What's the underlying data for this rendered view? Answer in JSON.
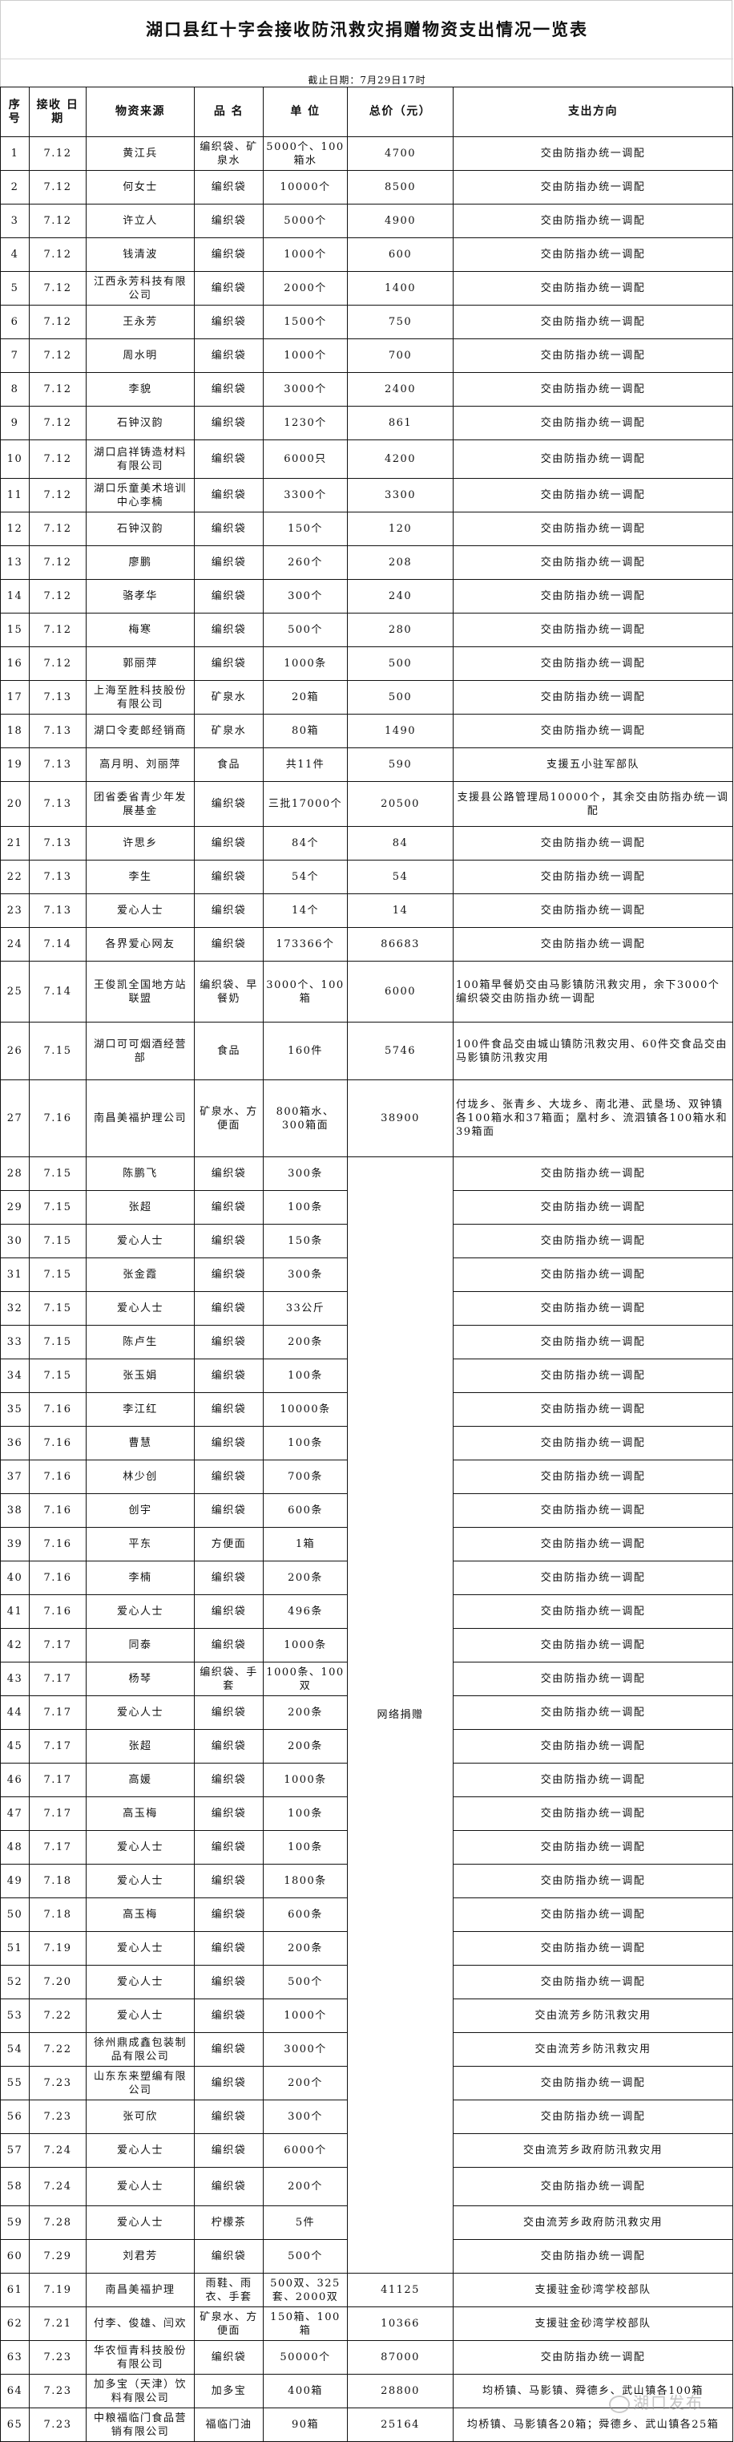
{
  "title": "湖口县红十字会接收防汛救灾捐赠物资支出情况一览表",
  "subtitle": "截止日期：7月29日17时",
  "columns": [
    "序号",
    "接收 日期",
    "物资来源",
    "品 名",
    "单 位",
    "总价（元）",
    "支出方向"
  ],
  "merged_total": "网络捐赠",
  "rows": [
    [
      "1",
      "7.12",
      "黄江兵",
      "编织袋、矿泉水",
      "5000个、100箱水",
      "4700",
      "交由防指办统一调配"
    ],
    [
      "2",
      "7.12",
      "何女士",
      "编织袋",
      "10000个",
      "8500",
      "交由防指办统一调配"
    ],
    [
      "3",
      "7.12",
      "许立人",
      "编织袋",
      "5000个",
      "4900",
      "交由防指办统一调配"
    ],
    [
      "4",
      "7.12",
      "钱清波",
      "编织袋",
      "1000个",
      "600",
      "交由防指办统一调配"
    ],
    [
      "5",
      "7.12",
      "江西永芳科技有限公司",
      "编织袋",
      "2000个",
      "1400",
      "交由防指办统一调配"
    ],
    [
      "6",
      "7.12",
      "王永芳",
      "编织袋",
      "1500个",
      "750",
      "交由防指办统一调配"
    ],
    [
      "7",
      "7.12",
      "周水明",
      "编织袋",
      "1000个",
      "700",
      "交由防指办统一调配"
    ],
    [
      "8",
      "7.12",
      "李貌",
      "编织袋",
      "3000个",
      "2400",
      "交由防指办统一调配"
    ],
    [
      "9",
      "7.12",
      "石钟汉韵",
      "编织袋",
      "1230个",
      "861",
      "交由防指办统一调配"
    ],
    [
      "10",
      "7.12",
      "湖口启祥铸造材料有限公司",
      "编织袋",
      "6000只",
      "4200",
      "交由防指办统一调配"
    ],
    [
      "11",
      "7.12",
      "湖口乐童美术培训中心李楠",
      "编织袋",
      "3300个",
      "3300",
      "交由防指办统一调配"
    ],
    [
      "12",
      "7.12",
      "石钟汉韵",
      "编织袋",
      "150个",
      "120",
      "交由防指办统一调配"
    ],
    [
      "13",
      "7.12",
      "廖鹏",
      "编织袋",
      "260个",
      "208",
      "交由防指办统一调配"
    ],
    [
      "14",
      "7.12",
      "骆孝华",
      "编织袋",
      "300个",
      "240",
      "交由防指办统一调配"
    ],
    [
      "15",
      "7.12",
      "梅寒",
      "编织袋",
      "500个",
      "280",
      "交由防指办统一调配"
    ],
    [
      "16",
      "7.12",
      "郭丽萍",
      "编织袋",
      "1000条",
      "500",
      "交由防指办统一调配"
    ],
    [
      "17",
      "7.13",
      "上海至胜科技股份有限公司",
      "矿泉水",
      "20箱",
      "500",
      "交由防指办统一调配"
    ],
    [
      "18",
      "7.13",
      "湖口令麦郎经销商",
      "矿泉水",
      "80箱",
      "1490",
      "交由防指办统一调配"
    ],
    [
      "19",
      "7.13",
      "高月明、刘丽萍",
      "食品",
      "共11件",
      "590",
      "支援五小驻军部队"
    ],
    [
      "20",
      "7.13",
      "团省委省青少年发展基金",
      "编织袋",
      "三批17000个",
      "20500",
      "支援县公路管理局10000个，其余交由防指办统一调配"
    ],
    [
      "21",
      "7.13",
      "许思乡",
      "编织袋",
      "84个",
      "84",
      "交由防指办统一调配"
    ],
    [
      "22",
      "7.13",
      "李生",
      "编织袋",
      "54个",
      "54",
      "交由防指办统一调配"
    ],
    [
      "23",
      "7.13",
      "爱心人士",
      "编织袋",
      "14个",
      "14",
      "交由防指办统一调配"
    ],
    [
      "24",
      "7.14",
      "各界爱心网友",
      "编织袋",
      "173366个",
      "86683",
      "交由防指办统一调配"
    ],
    [
      "25",
      "7.14",
      "王俊凯全国地方站联盟",
      "编织袋、早餐奶",
      "3000个、100箱",
      "6000",
      "100箱早餐奶交由马影镇防汛救灾用，余下3000个编织袋交由防指办统一调配"
    ],
    [
      "26",
      "7.15",
      "湖口可可烟酒经营部",
      "食品",
      "160件",
      "5746",
      "100件食品交由城山镇防汛救灾用、60件交食品交由马影镇防汛救灾用"
    ],
    [
      "27",
      "7.16",
      "南昌美福护理公司",
      "矿泉水、方便面",
      "800箱水、300箱面",
      "38900",
      "付垅乡、张青乡、大垅乡、南北港、武垦场、双钟镇各100箱水和37箱面；凰村乡、流泗镇各100箱水和39箱面"
    ],
    [
      "28",
      "7.15",
      "陈鹏飞",
      "编织袋",
      "300条",
      "",
      "交由防指办统一调配"
    ],
    [
      "29",
      "7.15",
      "张超",
      "编织袋",
      "100条",
      "",
      "交由防指办统一调配"
    ],
    [
      "30",
      "7.15",
      "爱心人士",
      "编织袋",
      "150条",
      "",
      "交由防指办统一调配"
    ],
    [
      "31",
      "7.15",
      "张金霞",
      "编织袋",
      "300条",
      "",
      "交由防指办统一调配"
    ],
    [
      "32",
      "7.15",
      "爱心人士",
      "编织袋",
      "33公斤",
      "",
      "交由防指办统一调配"
    ],
    [
      "33",
      "7.15",
      "陈卢生",
      "编织袋",
      "200条",
      "",
      "交由防指办统一调配"
    ],
    [
      "34",
      "7.15",
      "张玉娟",
      "编织袋",
      "100条",
      "",
      "交由防指办统一调配"
    ],
    [
      "35",
      "7.16",
      "李江红",
      "编织袋",
      "10000条",
      "",
      "交由防指办统一调配"
    ],
    [
      "36",
      "7.16",
      "曹慧",
      "编织袋",
      "100条",
      "",
      "交由防指办统一调配"
    ],
    [
      "37",
      "7.16",
      "林少创",
      "编织袋",
      "700条",
      "",
      "交由防指办统一调配"
    ],
    [
      "38",
      "7.16",
      "创宇",
      "编织袋",
      "600条",
      "",
      "交由防指办统一调配"
    ],
    [
      "39",
      "7.16",
      "平东",
      "方便面",
      "1箱",
      "",
      "交由防指办统一调配"
    ],
    [
      "40",
      "7.16",
      "李楠",
      "编织袋",
      "200条",
      "",
      "交由防指办统一调配"
    ],
    [
      "41",
      "7.16",
      "爱心人士",
      "编织袋",
      "496条",
      "",
      "交由防指办统一调配"
    ],
    [
      "42",
      "7.17",
      "同泰",
      "编织袋",
      "1000条",
      "",
      "交由防指办统一调配"
    ],
    [
      "43",
      "7.17",
      "杨琴",
      "编织袋、手套",
      "1000条、100双",
      "",
      "交由防指办统一调配"
    ],
    [
      "44",
      "7.17",
      "爱心人士",
      "编织袋",
      "200条",
      "",
      "交由防指办统一调配"
    ],
    [
      "45",
      "7.17",
      "张超",
      "编织袋",
      "200条",
      "",
      "交由防指办统一调配"
    ],
    [
      "46",
      "7.17",
      "高媛",
      "编织袋",
      "1000条",
      "",
      "交由防指办统一调配"
    ],
    [
      "47",
      "7.17",
      "高玉梅",
      "编织袋",
      "100条",
      "",
      "交由防指办统一调配"
    ],
    [
      "48",
      "7.17",
      "爱心人士",
      "编织袋",
      "100条",
      "",
      "交由防指办统一调配"
    ],
    [
      "49",
      "7.18",
      "爱心人士",
      "编织袋",
      "1800条",
      "",
      "交由防指办统一调配"
    ],
    [
      "50",
      "7.18",
      "高玉梅",
      "编织袋",
      "600条",
      "",
      "交由防指办统一调配"
    ],
    [
      "51",
      "7.19",
      "爱心人士",
      "编织袋",
      "200条",
      "",
      "交由防指办统一调配"
    ],
    [
      "52",
      "7.20",
      "爱心人士",
      "编织袋",
      "500个",
      "",
      "交由防指办统一调配"
    ],
    [
      "53",
      "7.22",
      "爱心人士",
      "编织袋",
      "1000个",
      "",
      "交由流芳乡防汛救灾用"
    ],
    [
      "54",
      "7.22",
      "徐州鼎成鑫包装制品有限公司",
      "编织袋",
      "3000个",
      "",
      "交由流芳乡防汛救灾用"
    ],
    [
      "55",
      "7.23",
      "山东东来塑编有限公司",
      "编织袋",
      "200个",
      "",
      "交由防指办统一调配"
    ],
    [
      "56",
      "7.23",
      "张可欣",
      "编织袋",
      "300个",
      "",
      "交由防指办统一调配"
    ],
    [
      "57",
      "7.24",
      "爱心人士",
      "编织袋",
      "6000个",
      "",
      "交由流芳乡政府防汛救灾用"
    ],
    [
      "58",
      "7.24",
      "爱心人士",
      "编织袋",
      "200个",
      "",
      "交由防指办统一调配"
    ],
    [
      "59",
      "7.28",
      "爱心人士",
      "柠檬茶",
      "5件",
      "",
      "交由流芳乡政府防汛救灾用"
    ],
    [
      "60",
      "7.29",
      "刘君芳",
      "编织袋",
      "500个",
      "",
      "交由防指办统一调配"
    ],
    [
      "61",
      "7.19",
      "南昌美福护理",
      "雨鞋、雨衣、手套",
      "500双、325套、2000双",
      "41125",
      "支援驻金砂湾学校部队"
    ],
    [
      "62",
      "7.21",
      "付李、俊雄、闫欢",
      "矿泉水、方便面",
      "150箱、100箱",
      "10366",
      "支援驻金砂湾学校部队"
    ],
    [
      "63",
      "7.23",
      "华农恒青科技股份有限公司",
      "编织袋",
      "50000个",
      "87000",
      "交由防指办统一调配"
    ],
    [
      "64",
      "7.23",
      "加多宝（天津）饮料有限公司",
      "加多宝",
      "400箱",
      "28800",
      "均桥镇、马影镇、舜德乡、武山镇各100箱"
    ],
    [
      "65",
      "7.23",
      "中粮福临门食品营销有限公司",
      "福临门油",
      "90箱",
      "25164",
      "均桥镇、马影镇各20箱；舜德乡、武山镇各25箱"
    ]
  ],
  "watermark": "湖口发布"
}
